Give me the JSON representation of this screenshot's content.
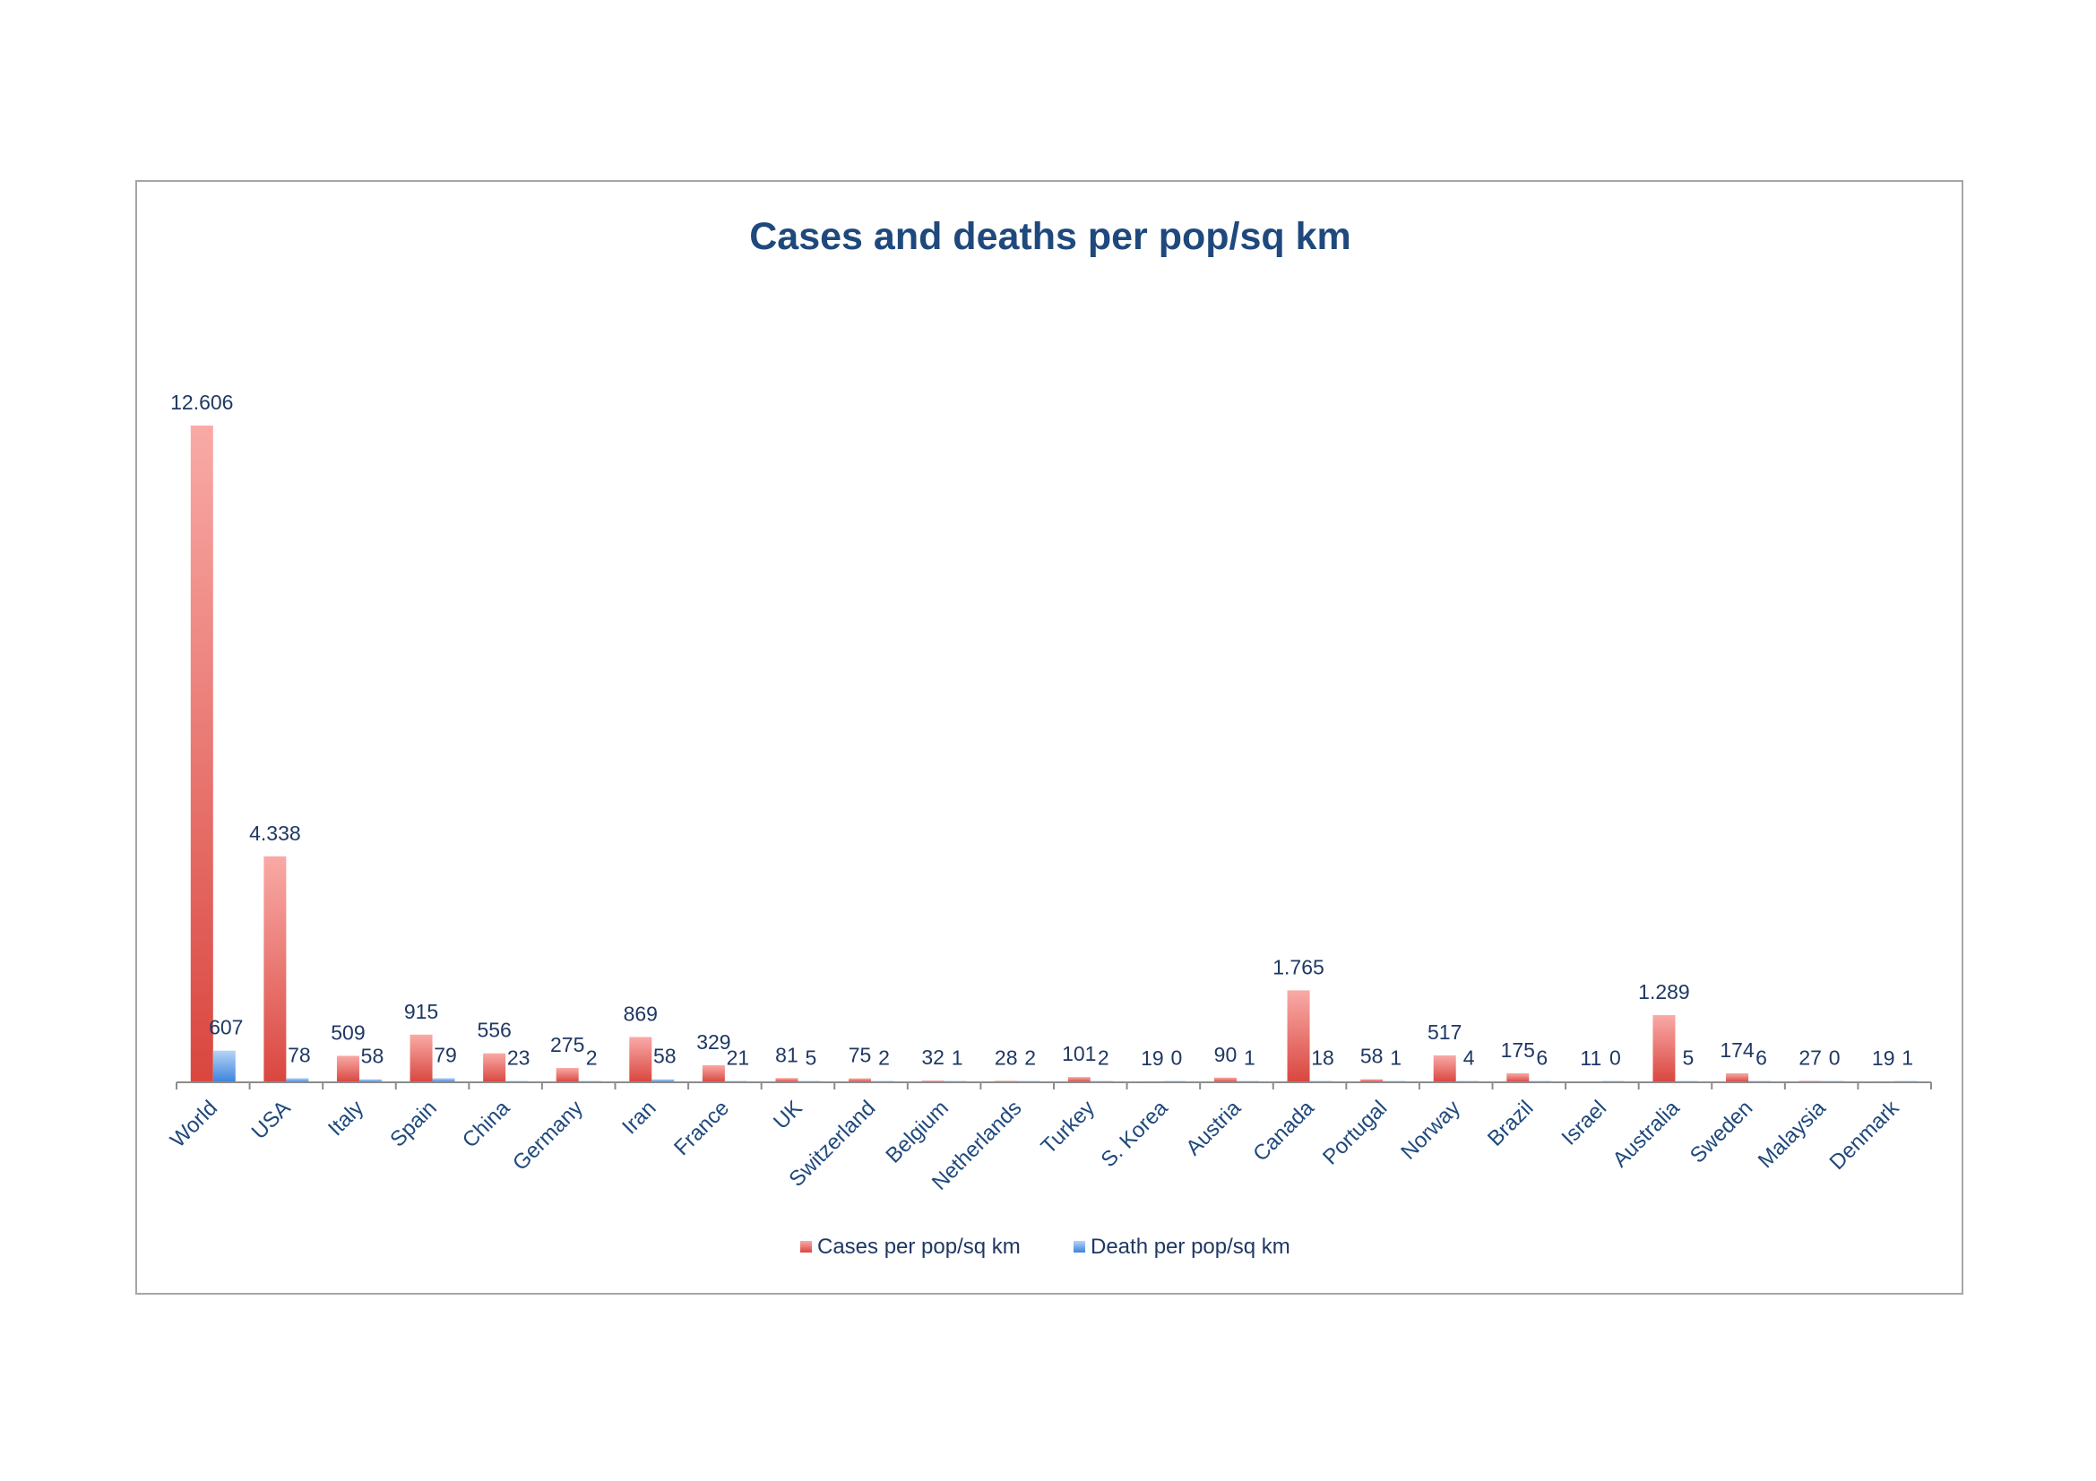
{
  "chart_data": {
    "type": "bar",
    "title": "Cases and deaths per pop/sq km",
    "xlabel": "",
    "ylabel": "",
    "grid": false,
    "legend_position": "bottom",
    "categories": [
      "World",
      "USA",
      "Italy",
      "Spain",
      "China",
      "Germany",
      "Iran",
      "France",
      "UK",
      "Switzerland",
      "Belgium",
      "Netherlands",
      "Turkey",
      "S. Korea",
      "Austria",
      "Canada",
      "Portugal",
      "Norway",
      "Brazil",
      "Israel",
      "Australia",
      "Sweden",
      "Malaysia",
      "Denmark"
    ],
    "series": [
      {
        "name": "Cases per pop/sq km",
        "color": "#e0504a",
        "values": [
          12606,
          4338,
          509,
          915,
          556,
          275,
          869,
          329,
          81,
          75,
          32,
          28,
          101,
          19,
          90,
          1765,
          58,
          517,
          175,
          11,
          1289,
          174,
          27,
          19
        ],
        "labels": [
          "12.606",
          "4.338",
          "509",
          "915",
          "556",
          "275",
          "869",
          "329",
          "81",
          "75",
          "32",
          "28",
          "101",
          "19",
          "90",
          "1.765",
          "58",
          "517",
          "175",
          "11",
          "1.289",
          "174",
          "27",
          "19"
        ]
      },
      {
        "name": "Death per pop/sq km",
        "color": "#4f8fe0",
        "values": [
          607,
          78,
          58,
          79,
          23,
          2,
          58,
          21,
          5,
          2,
          1,
          2,
          2,
          0,
          1,
          18,
          1,
          4,
          6,
          0,
          5,
          6,
          0,
          1
        ],
        "labels": [
          "607",
          "78",
          "58",
          "79",
          "23",
          "2",
          "58",
          "21",
          "5",
          "2",
          "1",
          "2",
          "2",
          "0",
          "1",
          "18",
          "1",
          "4",
          "6",
          "0",
          "5",
          "6",
          "0",
          "1"
        ]
      }
    ]
  }
}
